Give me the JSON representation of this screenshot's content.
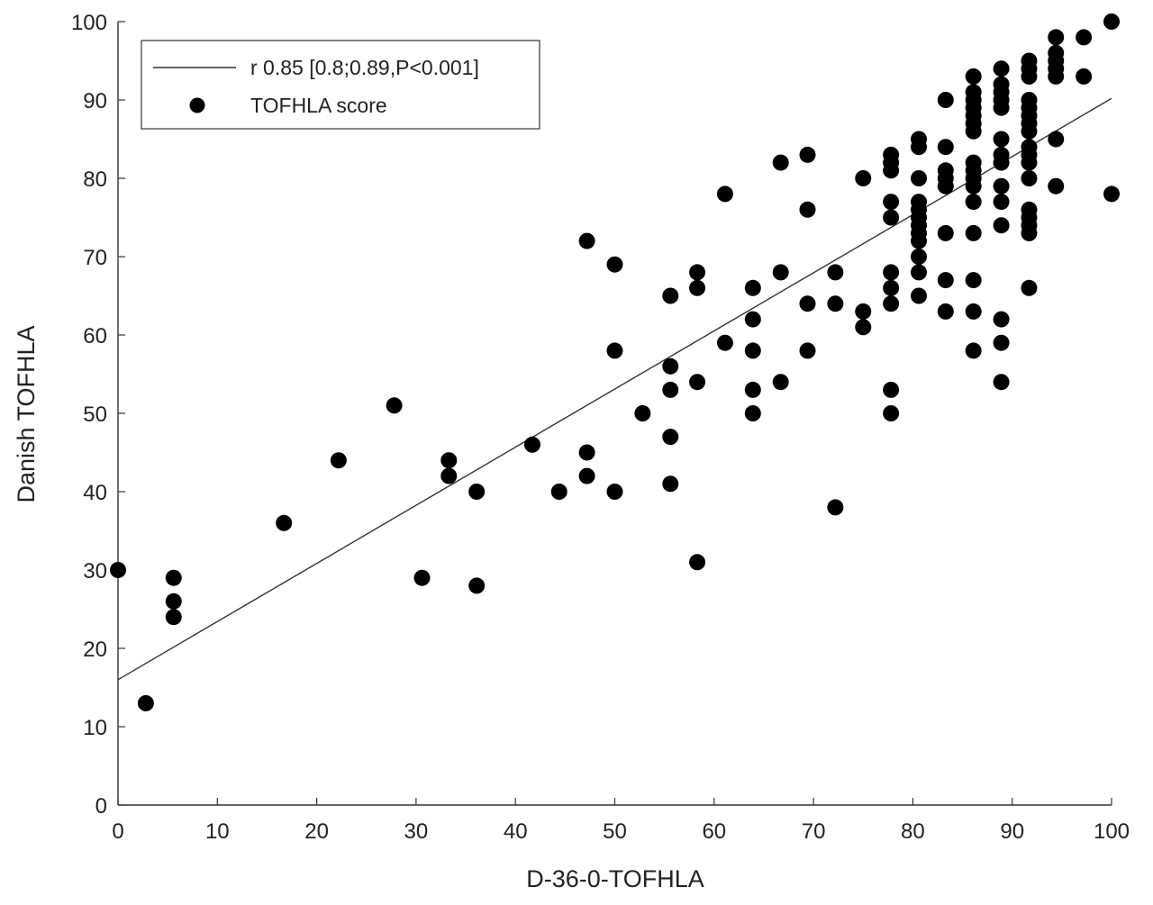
{
  "chart_data": {
    "type": "scatter",
    "xlabel": "D-36-0-TOFHLA",
    "ylabel": "Danish TOFHLA",
    "xlim": [
      0,
      100
    ],
    "ylim": [
      0,
      100
    ],
    "xticks": [
      0,
      10,
      20,
      30,
      40,
      50,
      60,
      70,
      80,
      90,
      100
    ],
    "yticks": [
      0,
      10,
      20,
      30,
      40,
      50,
      60,
      70,
      80,
      90,
      100
    ],
    "grid": false,
    "legend": {
      "position": "top-left",
      "entries": [
        {
          "label": "r 0.85 [0.8;0.89,P<0.001]",
          "kind": "line"
        },
        {
          "label": "TOFHLA score",
          "kind": "marker"
        }
      ]
    },
    "fit_line": {
      "x": [
        0,
        100
      ],
      "y": [
        16,
        90.2
      ]
    },
    "series": [
      {
        "name": "TOFHLA score",
        "color": "#000000",
        "points": [
          [
            0,
            30
          ],
          [
            2.8,
            13
          ],
          [
            5.6,
            29
          ],
          [
            5.6,
            26
          ],
          [
            5.6,
            24
          ],
          [
            16.7,
            36
          ],
          [
            22.2,
            44
          ],
          [
            27.8,
            51
          ],
          [
            30.6,
            29
          ],
          [
            33.3,
            44
          ],
          [
            33.3,
            42
          ],
          [
            36.1,
            40
          ],
          [
            36.1,
            28
          ],
          [
            41.7,
            46
          ],
          [
            44.4,
            40
          ],
          [
            47.2,
            72
          ],
          [
            47.2,
            45
          ],
          [
            47.2,
            42
          ],
          [
            50,
            69
          ],
          [
            50,
            58
          ],
          [
            50,
            40
          ],
          [
            52.8,
            50
          ],
          [
            55.6,
            65
          ],
          [
            55.6,
            56
          ],
          [
            55.6,
            53
          ],
          [
            55.6,
            47
          ],
          [
            55.6,
            41
          ],
          [
            58.3,
            68
          ],
          [
            58.3,
            66
          ],
          [
            58.3,
            54
          ],
          [
            58.3,
            31
          ],
          [
            61.1,
            78
          ],
          [
            61.1,
            59
          ],
          [
            63.9,
            66
          ],
          [
            63.9,
            62
          ],
          [
            63.9,
            58
          ],
          [
            63.9,
            53
          ],
          [
            63.9,
            50
          ],
          [
            66.7,
            82
          ],
          [
            66.7,
            68
          ],
          [
            66.7,
            54
          ],
          [
            69.4,
            83
          ],
          [
            69.4,
            76
          ],
          [
            69.4,
            64
          ],
          [
            69.4,
            58
          ],
          [
            72.2,
            68
          ],
          [
            72.2,
            64
          ],
          [
            72.2,
            38
          ],
          [
            75,
            80
          ],
          [
            75,
            63
          ],
          [
            75,
            61
          ],
          [
            77.8,
            83
          ],
          [
            77.8,
            82
          ],
          [
            77.8,
            81
          ],
          [
            77.8,
            77
          ],
          [
            77.8,
            75
          ],
          [
            77.8,
            68
          ],
          [
            77.8,
            66
          ],
          [
            77.8,
            64
          ],
          [
            77.8,
            53
          ],
          [
            77.8,
            50
          ],
          [
            80.6,
            85
          ],
          [
            80.6,
            84
          ],
          [
            80.6,
            80
          ],
          [
            80.6,
            77
          ],
          [
            80.6,
            76
          ],
          [
            80.6,
            75
          ],
          [
            80.6,
            74
          ],
          [
            80.6,
            73
          ],
          [
            80.6,
            72
          ],
          [
            80.6,
            70
          ],
          [
            80.6,
            68
          ],
          [
            80.6,
            65
          ],
          [
            83.3,
            90
          ],
          [
            83.3,
            84
          ],
          [
            83.3,
            81
          ],
          [
            83.3,
            80
          ],
          [
            83.3,
            79
          ],
          [
            83.3,
            73
          ],
          [
            83.3,
            67
          ],
          [
            83.3,
            63
          ],
          [
            86.1,
            93
          ],
          [
            86.1,
            91
          ],
          [
            86.1,
            90
          ],
          [
            86.1,
            89
          ],
          [
            86.1,
            88
          ],
          [
            86.1,
            87
          ],
          [
            86.1,
            86
          ],
          [
            86.1,
            82
          ],
          [
            86.1,
            81
          ],
          [
            86.1,
            80
          ],
          [
            86.1,
            79
          ],
          [
            86.1,
            77
          ],
          [
            86.1,
            73
          ],
          [
            86.1,
            67
          ],
          [
            86.1,
            63
          ],
          [
            86.1,
            58
          ],
          [
            88.9,
            94
          ],
          [
            88.9,
            92
          ],
          [
            88.9,
            91
          ],
          [
            88.9,
            90
          ],
          [
            88.9,
            89
          ],
          [
            88.9,
            85
          ],
          [
            88.9,
            83
          ],
          [
            88.9,
            82
          ],
          [
            88.9,
            79
          ],
          [
            88.9,
            77
          ],
          [
            88.9,
            74
          ],
          [
            88.9,
            62
          ],
          [
            88.9,
            59
          ],
          [
            88.9,
            54
          ],
          [
            91.7,
            95
          ],
          [
            91.7,
            94
          ],
          [
            91.7,
            93
          ],
          [
            91.7,
            90
          ],
          [
            91.7,
            89
          ],
          [
            91.7,
            88
          ],
          [
            91.7,
            87
          ],
          [
            91.7,
            86
          ],
          [
            91.7,
            84
          ],
          [
            91.7,
            83
          ],
          [
            91.7,
            82
          ],
          [
            91.7,
            80
          ],
          [
            91.7,
            76
          ],
          [
            91.7,
            75
          ],
          [
            91.7,
            74
          ],
          [
            91.7,
            73
          ],
          [
            91.7,
            66
          ],
          [
            94.4,
            98
          ],
          [
            94.4,
            96
          ],
          [
            94.4,
            95
          ],
          [
            94.4,
            94
          ],
          [
            94.4,
            93
          ],
          [
            94.4,
            85
          ],
          [
            94.4,
            79
          ],
          [
            97.2,
            98
          ],
          [
            97.2,
            93
          ],
          [
            100,
            100
          ],
          [
            100,
            78
          ]
        ]
      }
    ]
  }
}
